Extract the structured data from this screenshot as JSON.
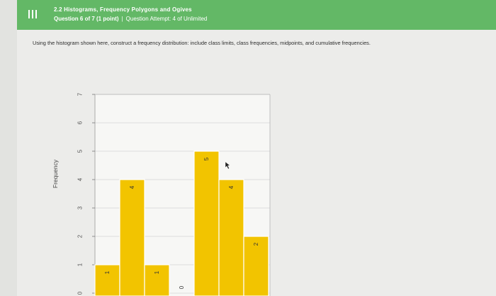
{
  "header": {
    "title": "2.2 Histograms, Frequency Polygons and Ogives",
    "question": "Question 6 of 7 (1 point)",
    "separator": "|",
    "attempt": "Question Attempt: 4 of Unlimited"
  },
  "instructions": "Using the histogram shown here, construct a frequency distribution: include class limits, class frequencies, midpoints, and cumulative frequencies.",
  "colors": {
    "header": "#63b866",
    "bar": "#f2c400"
  },
  "chart_data": {
    "type": "bar",
    "ylabel": "Frequency",
    "ylim": [
      0,
      7
    ],
    "yticks": [
      0,
      1,
      2,
      3,
      4,
      5,
      6,
      7
    ],
    "values": [
      1,
      4,
      1,
      0,
      5,
      4,
      2
    ],
    "data_labels": [
      "1",
      "4",
      "1",
      "0",
      "5",
      "4",
      "2"
    ],
    "grid": true
  }
}
